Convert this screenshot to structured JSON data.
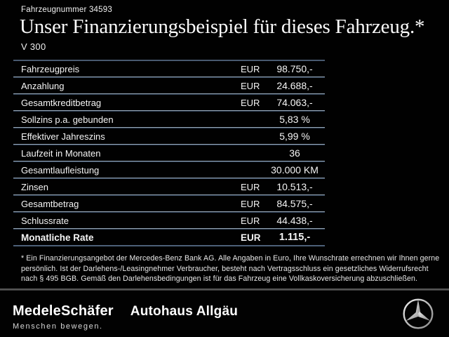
{
  "header": {
    "vehicle_number": "Fahrzeugnummer 34593",
    "title": "Unser Finanzierungsbeispiel für dieses Fahrzeug.*",
    "model": "V 300"
  },
  "table": {
    "rows": [
      {
        "label": "Fahrzeugpreis",
        "currency": "EUR",
        "value": "98.750,-",
        "emphasis": false
      },
      {
        "label": "Anzahlung",
        "currency": "EUR",
        "value": "24.688,-",
        "emphasis": false
      },
      {
        "label": "Gesamtkreditbetrag",
        "currency": "EUR",
        "value": "74.063,-",
        "emphasis": false
      },
      {
        "label": "Sollzins p.a. gebunden",
        "currency": "",
        "value": "5,83 %",
        "emphasis": false
      },
      {
        "label": "Effektiver Jahreszins",
        "currency": "",
        "value": "5,99 %",
        "emphasis": false
      },
      {
        "label": "Laufzeit in Monaten",
        "currency": "",
        "value": "36",
        "emphasis": false
      },
      {
        "label": "Gesamtlaufleistung",
        "currency": "",
        "value": "30.000 KM",
        "emphasis": false
      },
      {
        "label": "Zinsen",
        "currency": "EUR",
        "value": "10.513,-",
        "emphasis": false
      },
      {
        "label": "Gesamtbetrag",
        "currency": "EUR",
        "value": "84.575,-",
        "emphasis": false
      },
      {
        "label": "Schlussrate",
        "currency": "EUR",
        "value": "44.438,-",
        "emphasis": false
      },
      {
        "label": "Monatliche Rate",
        "currency": "EUR",
        "value": "1.115,-",
        "emphasis": true
      }
    ]
  },
  "footnote": "* Ein Finanzierungsangebot der Mercedes-Benz Bank AG. Alle Angaben in Euro, Ihre Wunschrate errechnen wir Ihnen gerne persönlich. Ist der Darlehens-/Leasingnehmer Verbraucher, besteht nach Vertragsschluss ein gesetzliches Widerrufsrecht nach § 495 BGB. Gemäß den Darlehensbedingungen ist für das Fahrzeug eine Vollkaskoversicherung abzuschließen.",
  "footer": {
    "dealer_name": "MedeleSchäfer",
    "dealer_secondary": "Autohaus Allgäu",
    "dealer_tagline": "Menschen bewegen.",
    "brand_icon": "mercedes-star-icon"
  },
  "colors": {
    "background": "#010101",
    "text": "#f5f5f5",
    "table_border": "#4d6078",
    "separator_light": "#98a8b7",
    "separator_dark": "#26374d",
    "footer_divider": "#6e6e6e",
    "logo_silver": "#d9d9d9"
  }
}
